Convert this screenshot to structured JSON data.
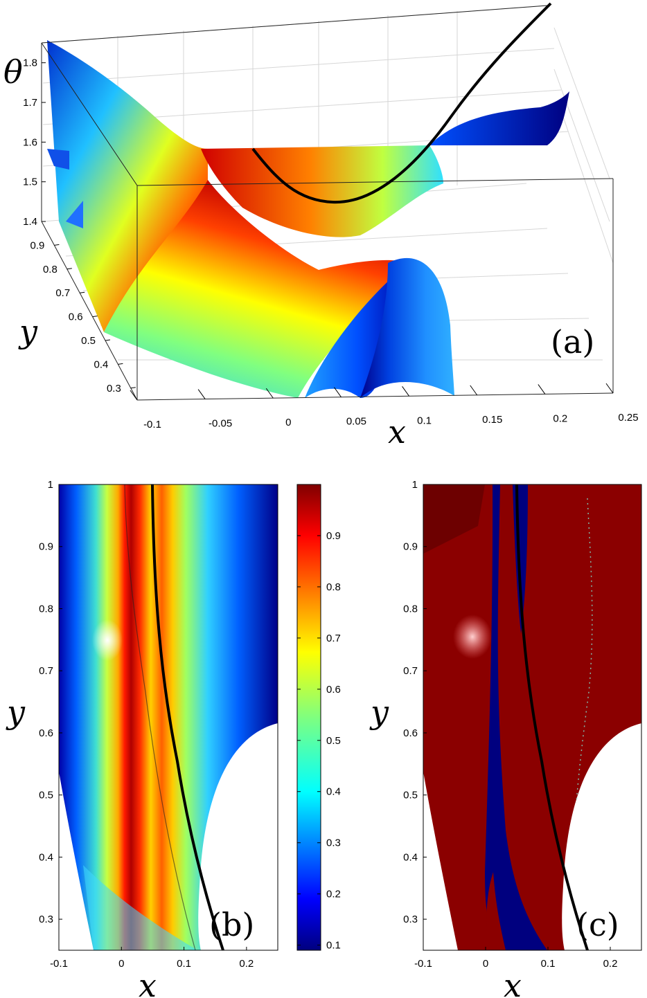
{
  "chart_data": [
    {
      "panel": "(a)",
      "type": "surface",
      "xlabel": "x",
      "ylabel": "y",
      "zlabel": "θ",
      "xticks": [
        "-0.1",
        "-0.05",
        "0",
        "0.05",
        "0.1",
        "0.15",
        "0.2",
        "0.25"
      ],
      "yticks": [
        "0.3",
        "0.4",
        "0.5",
        "0.6",
        "0.7",
        "0.8",
        "0.9"
      ],
      "zticks": [
        "1.4",
        "1.5",
        "1.6",
        "1.7",
        "1.8"
      ],
      "xlim": [
        -0.1,
        0.25
      ],
      "ylim": [
        0.25,
        1.0
      ],
      "zlim": [
        1.4,
        1.85
      ],
      "grid": true,
      "colormap": "jet",
      "curve": {
        "color": "#000000",
        "description_points": [
          [
            0.05,
            1.0,
            1.55
          ],
          [
            0.1,
            0.55,
            1.47
          ],
          [
            0.22,
            0.3,
            1.9
          ]
        ]
      }
    },
    {
      "panel": "(b)",
      "type": "heatmap",
      "xlabel": "x",
      "ylabel": "y",
      "xticks": [
        "-0.1",
        "0",
        "0.1",
        "0.2"
      ],
      "yticks": [
        "0.3",
        "0.4",
        "0.5",
        "0.6",
        "0.7",
        "0.8",
        "0.9",
        "1"
      ],
      "xlim": [
        -0.1,
        0.25
      ],
      "ylim": [
        0.25,
        1.0
      ],
      "colormap": "jet",
      "colorbar": {
        "ticks": [
          "0.1",
          "0.2",
          "0.3",
          "0.4",
          "0.5",
          "0.6",
          "0.7",
          "0.8",
          "0.9"
        ],
        "range": [
          0.09,
          1.0
        ]
      }
    },
    {
      "panel": "(c)",
      "type": "heatmap",
      "xlabel": "x",
      "ylabel": "y",
      "xticks": [
        "-0.1",
        "0",
        "0.1",
        "0.2"
      ],
      "yticks": [
        "0.3",
        "0.4",
        "0.5",
        "0.6",
        "0.7",
        "0.8",
        "0.9",
        "1"
      ],
      "xlim": [
        -0.1,
        0.25
      ],
      "ylim": [
        0.25,
        1.0
      ],
      "colors": {
        "region_high": "#8b0000",
        "region_low": "#00007f"
      }
    }
  ]
}
